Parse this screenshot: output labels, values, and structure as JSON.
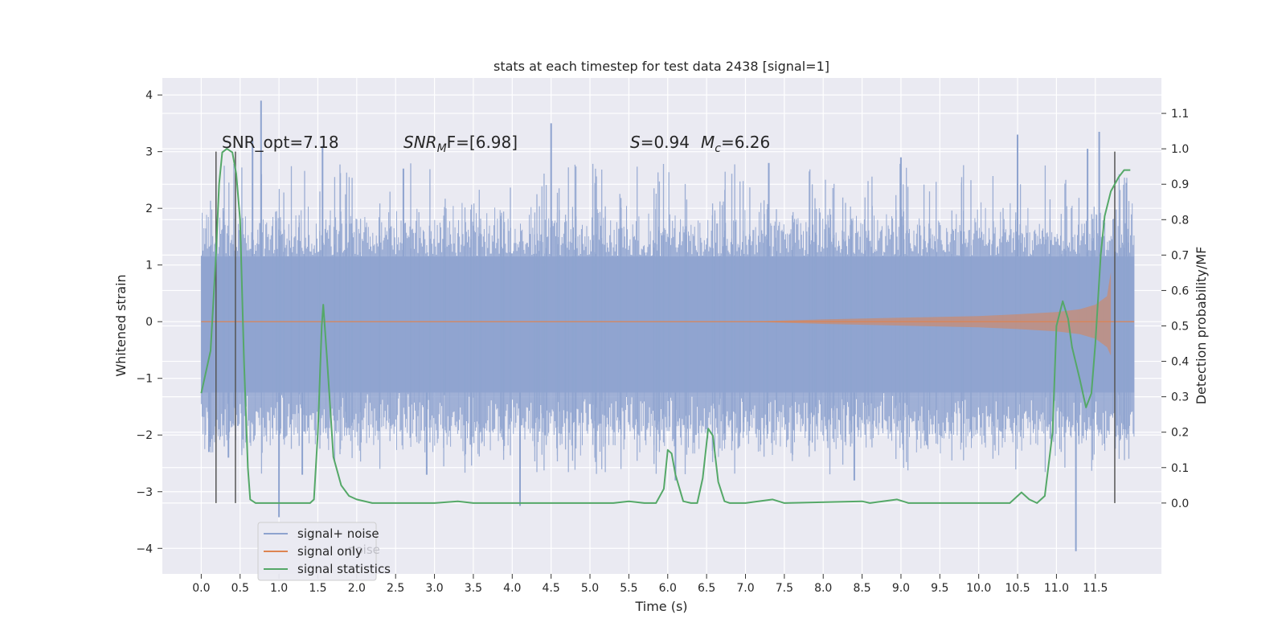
{
  "chart_data": {
    "type": "line",
    "title": "stats at each timestep for test data 2438 [signal=1]",
    "xlabel": "Time (s)",
    "ylabel_left": "Whitened strain",
    "ylabel_right": "Detection probability/MF",
    "xlim": [
      -0.5,
      12.35
    ],
    "ylim_left": [
      -4.45,
      4.3
    ],
    "ylim_right": [
      -0.2,
      1.2
    ],
    "x_ticks": [
      "0.0",
      "0.5",
      "1.0",
      "1.5",
      "2.0",
      "2.5",
      "3.0",
      "3.5",
      "4.0",
      "4.5",
      "5.0",
      "5.5",
      "6.0",
      "6.5",
      "7.0",
      "7.5",
      "8.0",
      "8.5",
      "9.0",
      "9.5",
      "10.0",
      "10.5",
      "11.0",
      "11.5"
    ],
    "y_ticks_left": [
      "4",
      "3",
      "2",
      "1",
      "0",
      "−1",
      "−2",
      "−3",
      "−4"
    ],
    "y_ticks_right": [
      "1.1",
      "1.0",
      "0.9",
      "0.8",
      "0.7",
      "0.6",
      "0.5",
      "0.4",
      "0.3",
      "0.2",
      "0.1",
      "0.0"
    ],
    "grid": true,
    "legend_placement": "lower-left",
    "colors": {
      "noise": "#8ea3cf",
      "signal": "#dd8452",
      "stat": "#55a868",
      "vline": "#555555",
      "plot_bg": "#eaeaf2",
      "grid": "#ffffff"
    },
    "annotations": {
      "snr_opt": "SNR_opt=7.18",
      "snr_mf_sym": "SNR",
      "snr_mf_sub": "M",
      "snr_mf_rest": "F=[6.98]",
      "s_sym": "S",
      "s_val": "=0.94",
      "mc_sym": "M",
      "mc_sub": "c",
      "mc_val": "=6.26"
    },
    "vertical_lines_x": [
      0.19,
      0.44,
      11.75
    ],
    "series": [
      {
        "name": "signal+ noise",
        "axis": "left",
        "style": "band",
        "x_range": [
          0.0,
          12.0
        ],
        "core_upper": 1.15,
        "core_lower": -1.25,
        "dense_upper": 1.8,
        "dense_lower": -1.8,
        "spike_points": [
          [
            0.77,
            3.9
          ],
          [
            0.66,
            3.2
          ],
          [
            1.56,
            3.1
          ],
          [
            2.6,
            2.7
          ],
          [
            4.5,
            3.5
          ],
          [
            4.1,
            -3.25
          ],
          [
            1.0,
            -3.45
          ],
          [
            11.25,
            -4.05
          ],
          [
            11.55,
            3.35
          ],
          [
            10.5,
            3.3
          ],
          [
            11.4,
            3.05
          ],
          [
            1.3,
            -2.7
          ],
          [
            2.9,
            -2.7
          ],
          [
            6.1,
            -2.8
          ],
          [
            8.4,
            -2.8
          ],
          [
            0.1,
            -2.3
          ],
          [
            0.35,
            -2.4
          ],
          [
            11.9,
            2.45
          ],
          [
            9.0,
            2.9
          ],
          [
            7.3,
            2.8
          ]
        ]
      },
      {
        "name": "signal only",
        "axis": "left",
        "style": "chirp",
        "x": [
          0.0,
          7.0,
          8.0,
          9.0,
          10.0,
          10.5,
          11.0,
          11.3,
          11.5,
          11.65,
          11.7
        ],
        "amplitude": [
          0.0,
          0.0,
          0.04,
          0.07,
          0.1,
          0.13,
          0.17,
          0.22,
          0.3,
          0.45,
          0.88
        ],
        "lower_amplitude": [
          0.0,
          0.0,
          0.04,
          0.07,
          0.1,
          0.13,
          0.17,
          0.22,
          0.3,
          0.45,
          0.6
        ],
        "x_end": 12.0
      },
      {
        "name": "signal statistics",
        "axis": "right",
        "style": "line",
        "points": [
          [
            0.0,
            0.31
          ],
          [
            0.12,
            0.43
          ],
          [
            0.19,
            0.7
          ],
          [
            0.23,
            0.9
          ],
          [
            0.27,
            0.99
          ],
          [
            0.33,
            1.0
          ],
          [
            0.4,
            0.99
          ],
          [
            0.45,
            0.93
          ],
          [
            0.5,
            0.8
          ],
          [
            0.55,
            0.4
          ],
          [
            0.6,
            0.1
          ],
          [
            0.63,
            0.01
          ],
          [
            0.7,
            0.0
          ],
          [
            1.0,
            0.0
          ],
          [
            1.4,
            0.0
          ],
          [
            1.45,
            0.01
          ],
          [
            1.5,
            0.2
          ],
          [
            1.55,
            0.5
          ],
          [
            1.57,
            0.56
          ],
          [
            1.62,
            0.4
          ],
          [
            1.7,
            0.13
          ],
          [
            1.8,
            0.05
          ],
          [
            1.9,
            0.02
          ],
          [
            2.0,
            0.01
          ],
          [
            2.2,
            0.0
          ],
          [
            3.0,
            0.0
          ],
          [
            3.3,
            0.005
          ],
          [
            3.5,
            0.0
          ],
          [
            4.0,
            0.0
          ],
          [
            4.5,
            0.0
          ],
          [
            5.0,
            0.0
          ],
          [
            5.3,
            0.0
          ],
          [
            5.5,
            0.005
          ],
          [
            5.7,
            0.0
          ],
          [
            5.85,
            0.0
          ],
          [
            5.95,
            0.04
          ],
          [
            6.0,
            0.15
          ],
          [
            6.05,
            0.14
          ],
          [
            6.1,
            0.08
          ],
          [
            6.2,
            0.005
          ],
          [
            6.3,
            0.0
          ],
          [
            6.38,
            0.0
          ],
          [
            6.45,
            0.07
          ],
          [
            6.52,
            0.21
          ],
          [
            6.58,
            0.19
          ],
          [
            6.65,
            0.06
          ],
          [
            6.73,
            0.005
          ],
          [
            6.8,
            0.0
          ],
          [
            7.0,
            0.0
          ],
          [
            7.35,
            0.01
          ],
          [
            7.5,
            0.0
          ],
          [
            8.5,
            0.005
          ],
          [
            8.6,
            0.0
          ],
          [
            8.95,
            0.01
          ],
          [
            9.1,
            0.0
          ],
          [
            10.0,
            0.0
          ],
          [
            10.4,
            0.0
          ],
          [
            10.55,
            0.03
          ],
          [
            10.65,
            0.01
          ],
          [
            10.75,
            0.0
          ],
          [
            10.85,
            0.02
          ],
          [
            10.95,
            0.2
          ],
          [
            11.0,
            0.5
          ],
          [
            11.08,
            0.57
          ],
          [
            11.15,
            0.52
          ],
          [
            11.2,
            0.44
          ],
          [
            11.3,
            0.35
          ],
          [
            11.38,
            0.27
          ],
          [
            11.45,
            0.31
          ],
          [
            11.5,
            0.45
          ],
          [
            11.57,
            0.7
          ],
          [
            11.62,
            0.81
          ],
          [
            11.7,
            0.88
          ],
          [
            11.8,
            0.92
          ],
          [
            11.87,
            0.94
          ],
          [
            11.95,
            0.94
          ]
        ]
      }
    ]
  },
  "legend": [
    {
      "label": "signal+ noise",
      "color": "#8ea3cf"
    },
    {
      "label": "signal only",
      "color": "#dd8452"
    },
    {
      "label": "signal statistics",
      "color": "#55a868"
    }
  ],
  "legend_ghost_text": "noise"
}
